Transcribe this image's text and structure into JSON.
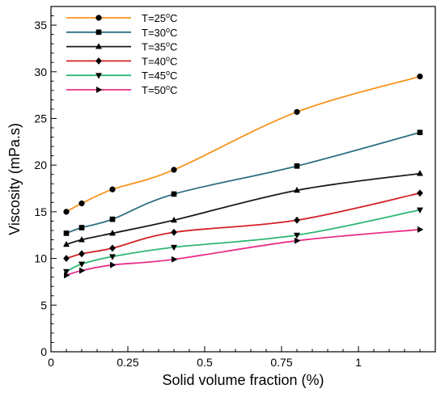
{
  "chart_data": {
    "type": "line",
    "title": "",
    "xlabel": "Solid volume fraction (%)",
    "ylabel": "Viscosity (mPa.s)",
    "xlim": [
      0,
      1.25
    ],
    "ylim": [
      0,
      37
    ],
    "x_ticks": [
      {
        "value": 0,
        "label": "0"
      },
      {
        "value": 0.25,
        "label": "0.25"
      },
      {
        "value": 0.5,
        "label": "0.5"
      },
      {
        "value": 0.75,
        "label": "0.75"
      },
      {
        "value": 1,
        "label": "1"
      }
    ],
    "y_ticks": [
      {
        "value": 0,
        "label": "0"
      },
      {
        "value": 5,
        "label": "5"
      },
      {
        "value": 10,
        "label": "10"
      },
      {
        "value": 15,
        "label": "15"
      },
      {
        "value": 20,
        "label": "20"
      },
      {
        "value": 25,
        "label": "25"
      },
      {
        "value": 30,
        "label": "30"
      },
      {
        "value": 35,
        "label": "35"
      }
    ],
    "grid": false,
    "legend": "top-left",
    "x": [
      0.05,
      0.1,
      0.2,
      0.4,
      0.8,
      1.2
    ],
    "series": [
      {
        "name": "T=25",
        "name_sup": "o",
        "name_suffix": "C",
        "color": "#f7941d",
        "marker": "circle",
        "values": [
          15.0,
          15.9,
          17.4,
          19.5,
          25.7,
          29.5
        ]
      },
      {
        "name": "T=30",
        "name_sup": "o",
        "name_suffix": "C",
        "color": "#2e6f82",
        "marker": "square",
        "values": [
          12.7,
          13.3,
          14.2,
          16.9,
          19.9,
          23.5
        ]
      },
      {
        "name": "T=35",
        "name_sup": "o",
        "name_suffix": "C",
        "color": "#1a1a1a",
        "marker": "triangle-up",
        "values": [
          11.5,
          12.0,
          12.7,
          14.1,
          17.3,
          19.1
        ]
      },
      {
        "name": "T=40",
        "name_sup": "o",
        "name_suffix": "C",
        "color": "#d42027",
        "marker": "diamond",
        "values": [
          10.0,
          10.5,
          11.1,
          12.8,
          14.1,
          17.0
        ]
      },
      {
        "name": "T=45",
        "name_sup": "o",
        "name_suffix": "C",
        "color": "#2fb673",
        "marker": "triangle-down",
        "values": [
          8.6,
          9.4,
          10.2,
          11.2,
          12.5,
          15.2
        ]
      },
      {
        "name": "T=50",
        "name_sup": "o",
        "name_suffix": "C",
        "color": "#e8308a",
        "marker": "triangle-right",
        "values": [
          8.2,
          8.7,
          9.3,
          9.9,
          11.9,
          13.1
        ]
      }
    ]
  }
}
